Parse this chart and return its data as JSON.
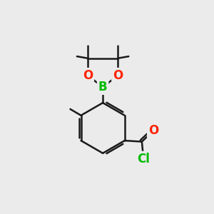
{
  "bg_color": "#ebebeb",
  "bond_color": "#1a1a1a",
  "bond_width": 1.8,
  "atom_colors": {
    "B": "#00bb00",
    "O": "#ff2200",
    "Cl": "#00bb00",
    "C": "#1a1a1a"
  },
  "font_size_atom": 12
}
